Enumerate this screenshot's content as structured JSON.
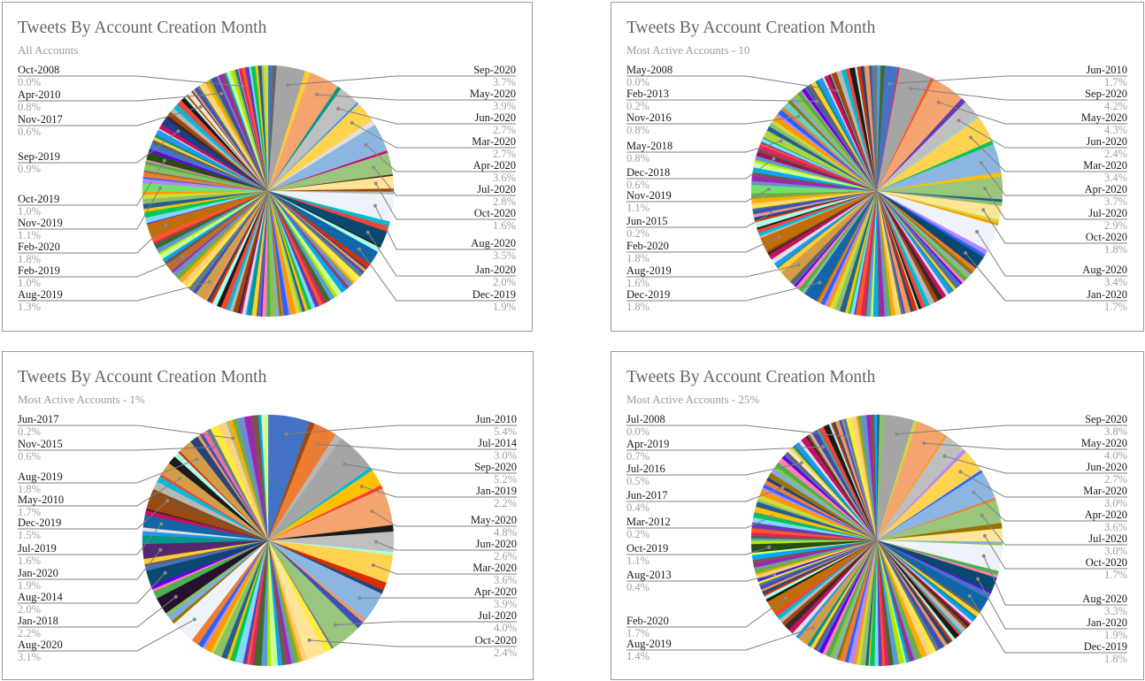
{
  "chart_data": [
    {
      "type": "pie",
      "title": "Tweets By Account Creation Month",
      "subtitle": "All Accounts",
      "unit": "%",
      "labeled_slices_right": [
        {
          "label": "Sep-2020",
          "value": 3.7,
          "color": "#a5a5a5"
        },
        {
          "label": "May-2020",
          "value": 3.9,
          "color": "#f4a46e"
        },
        {
          "label": "Jun-2020",
          "value": 2.7,
          "color": "#bfbfbf"
        },
        {
          "label": "Mar-2020",
          "value": 2.7,
          "color": "#ffd24f"
        },
        {
          "label": "Apr-2020",
          "value": 3.6,
          "color": "#8db5e2"
        },
        {
          "label": "Jul-2020",
          "value": 2.8,
          "color": "#9ac57d"
        },
        {
          "label": "Oct-2020",
          "value": 1.6,
          "color": "#ffe597"
        },
        {
          "label": "Aug-2020",
          "value": 3.5,
          "color": "#eef3fa"
        },
        {
          "label": "Jan-2020",
          "value": 2.0,
          "color": "#0b4870"
        },
        {
          "label": "Dec-2019",
          "value": 1.9,
          "color": "#1265a6"
        }
      ],
      "labeled_slices_left": [
        {
          "label": "Oct-2008",
          "value": 0.0,
          "color": "#9e9ee6"
        },
        {
          "label": "Apr-2010",
          "value": 0.8,
          "color": "#51479c"
        },
        {
          "label": "Nov-2017",
          "value": 0.6,
          "color": "#f7e8c2"
        },
        {
          "label": "Sep-2019",
          "value": 0.9,
          "color": "#1c3f8a"
        },
        {
          "label": "Oct-2019",
          "value": 1.0,
          "color": "#2a4d16"
        },
        {
          "label": "Nov-2019",
          "value": 1.1,
          "color": "#73e06b"
        },
        {
          "label": "Feb-2020",
          "value": 1.8,
          "color": "#c26e08"
        },
        {
          "label": "Feb-2019",
          "value": 1.0,
          "color": "#b86e30"
        },
        {
          "label": "Aug-2019",
          "value": 1.3,
          "color": "#d29c48"
        }
      ]
    },
    {
      "type": "pie",
      "title": "Tweets By Account Creation Month",
      "subtitle": "Most Active Accounts - 10",
      "unit": "%",
      "labeled_slices_right": [
        {
          "label": "Jun-2010",
          "value": 1.7,
          "color": "#4472c4"
        },
        {
          "label": "Sep-2020",
          "value": 4.2,
          "color": "#a5a5a5"
        },
        {
          "label": "May-2020",
          "value": 4.3,
          "color": "#f4a46e"
        },
        {
          "label": "Jun-2020",
          "value": 2.4,
          "color": "#bfbfbf"
        },
        {
          "label": "Mar-2020",
          "value": 3.4,
          "color": "#ffd24f"
        },
        {
          "label": "Apr-2020",
          "value": 3.7,
          "color": "#8db5e2"
        },
        {
          "label": "Jul-2020",
          "value": 2.9,
          "color": "#9ac57d"
        },
        {
          "label": "Oct-2020",
          "value": 1.8,
          "color": "#ffe597"
        },
        {
          "label": "Aug-2020",
          "value": 3.4,
          "color": "#eef3fa"
        },
        {
          "label": "Jan-2020",
          "value": 1.7,
          "color": "#0b4870"
        }
      ],
      "labeled_slices_left": [
        {
          "label": "May-2008",
          "value": 0.0,
          "color": "#9e9ee6"
        },
        {
          "label": "Feb-2013",
          "value": 0.2,
          "color": "#51479c"
        },
        {
          "label": "Nov-2016",
          "value": 0.8,
          "color": "#5ed6c8"
        },
        {
          "label": "May-2018",
          "value": 0.8,
          "color": "#a5d64a"
        },
        {
          "label": "Dec-2018",
          "value": 0.6,
          "color": "#a0105c"
        },
        {
          "label": "Nov-2019",
          "value": 1.1,
          "color": "#73e06b"
        },
        {
          "label": "Jun-2015",
          "value": 0.2,
          "color": "#c7a0d8"
        },
        {
          "label": "Feb-2020",
          "value": 1.8,
          "color": "#c26e08"
        },
        {
          "label": "Aug-2019",
          "value": 1.6,
          "color": "#d29c48"
        },
        {
          "label": "Dec-2019",
          "value": 1.8,
          "color": "#1265a6"
        }
      ]
    },
    {
      "type": "pie",
      "title": "Tweets By Account Creation Month",
      "subtitle": "Most Active Accounts - 1%",
      "unit": "%",
      "labeled_slices_right": [
        {
          "label": "Jun-2010",
          "value": 5.4,
          "color": "#4472c4"
        },
        {
          "label": "Jul-2014",
          "value": 3.0,
          "color": "#ed7d31"
        },
        {
          "label": "Sep-2020",
          "value": 5.2,
          "color": "#a5a5a5"
        },
        {
          "label": "Jan-2019",
          "value": 2.2,
          "color": "#ffc000"
        },
        {
          "label": "May-2020",
          "value": 4.8,
          "color": "#f4a46e"
        },
        {
          "label": "Jun-2020",
          "value": 2.6,
          "color": "#bfbfbf"
        },
        {
          "label": "Mar-2020",
          "value": 3.6,
          "color": "#ffd24f"
        },
        {
          "label": "Apr-2020",
          "value": 3.9,
          "color": "#8db5e2"
        },
        {
          "label": "Jul-2020",
          "value": 4.0,
          "color": "#9ac57d"
        },
        {
          "label": "Oct-2020",
          "value": 2.4,
          "color": "#ffe597"
        }
      ],
      "labeled_slices_left": [
        {
          "label": "Jun-2017",
          "value": 0.2,
          "color": "#5ed6c8"
        },
        {
          "label": "Nov-2015",
          "value": 0.6,
          "color": "#f26ea6"
        },
        {
          "label": "Aug-2019",
          "value": 1.8,
          "color": "#d29c48"
        },
        {
          "label": "May-2010",
          "value": 1.7,
          "color": "#d29c48"
        },
        {
          "label": "Dec-2019",
          "value": 1.5,
          "color": "#8a4f1c"
        },
        {
          "label": "Jul-2019",
          "value": 1.6,
          "color": "#1265a6"
        },
        {
          "label": "Jan-2020",
          "value": 1.9,
          "color": "#55286e"
        },
        {
          "label": "Aug-2014",
          "value": 2.0,
          "color": "#0b4870"
        },
        {
          "label": "Jan-2018",
          "value": 2.2,
          "color": "#26112e"
        },
        {
          "label": "Aug-2020",
          "value": 3.1,
          "color": "#eef3fa"
        }
      ]
    },
    {
      "type": "pie",
      "title": "Tweets By Account Creation Month",
      "subtitle": "Most Active Accounts - 25%",
      "unit": "%",
      "labeled_slices_right": [
        {
          "label": "Sep-2020",
          "value": 3.8,
          "color": "#a5a5a5"
        },
        {
          "label": "May-2020",
          "value": 4.0,
          "color": "#f4a46e"
        },
        {
          "label": "Jun-2020",
          "value": 2.7,
          "color": "#bfbfbf"
        },
        {
          "label": "Mar-2020",
          "value": 3.0,
          "color": "#ffd24f"
        },
        {
          "label": "Apr-2020",
          "value": 3.6,
          "color": "#8db5e2"
        },
        {
          "label": "Jul-2020",
          "value": 3.0,
          "color": "#9ac57d"
        },
        {
          "label": "Oct-2020",
          "value": 1.7,
          "color": "#ffe597"
        },
        {
          "label": "Aug-2020",
          "value": 3.3,
          "color": "#eef3fa"
        },
        {
          "label": "Jan-2020",
          "value": 1.9,
          "color": "#0b4870"
        },
        {
          "label": "Dec-2019",
          "value": 1.8,
          "color": "#1265a6"
        }
      ],
      "labeled_slices_left": [
        {
          "label": "Jul-2008",
          "value": 0.0,
          "color": "#9e9ee6"
        },
        {
          "label": "Apr-2019",
          "value": 0.7,
          "color": "#51479c"
        },
        {
          "label": "Jul-2016",
          "value": 0.5,
          "color": "#f7e8c2"
        },
        {
          "label": "Jun-2017",
          "value": 0.4,
          "color": "#1c3f8a"
        },
        {
          "label": "Mar-2012",
          "value": 0.2,
          "color": "#2a9a8a"
        },
        {
          "label": "Oct-2019",
          "value": 1.1,
          "color": "#2a4d16"
        },
        {
          "label": "Aug-2013",
          "value": 0.4,
          "color": "#3a2ad0"
        },
        {
          "label": "Feb-2020",
          "value": 1.7,
          "color": "#c26e08"
        },
        {
          "label": "Aug-2019",
          "value": 1.4,
          "color": "#d29c48"
        }
      ]
    }
  ],
  "palette_other": [
    "#4472c4",
    "#ed7d31",
    "#ffc000",
    "#5b9bd5",
    "#70ad47",
    "#264478",
    "#9e480e",
    "#636363",
    "#997300",
    "#255e91",
    "#43682b",
    "#698ed0",
    "#f1975a",
    "#b7b7b7",
    "#ffcd33",
    "#7cafdd",
    "#8cc168",
    "#e91e63",
    "#9c27b0",
    "#3f51b5",
    "#00bcd4",
    "#009688",
    "#8bc34a",
    "#cddc39",
    "#ff5722",
    "#795548",
    "#607d8b",
    "#f44336",
    "#2196f3",
    "#4caf50",
    "#ff9800",
    "#673ab7",
    "#03a9f4",
    "#ffeb3b",
    "#1b1b1b",
    "#e0e0e0",
    "#ff80ab",
    "#b388ff",
    "#80d8ff",
    "#ccff90",
    "#ffd180",
    "#a7ffeb",
    "#c51162",
    "#6200ea",
    "#2962ff",
    "#00c853",
    "#aeea00",
    "#ffab00",
    "#dd2c00",
    "#3e2723"
  ]
}
